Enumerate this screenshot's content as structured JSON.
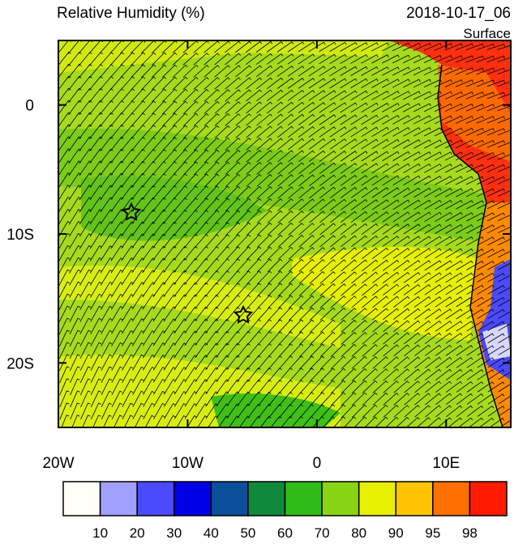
{
  "chart_data": {
    "type": "map",
    "title": "Relative Humidity (%)",
    "date": "2018-10-17_06",
    "level": "Surface",
    "xlim": [
      -20,
      15
    ],
    "ylim": [
      -25,
      5
    ],
    "xticks": [
      {
        "value": -20,
        "label": "20W"
      },
      {
        "value": -10,
        "label": "10W"
      },
      0,
      {
        "value": 10,
        "label": "10E"
      }
    ],
    "yticks": [
      0,
      {
        "value": -10,
        "label": "10S"
      },
      {
        "value": -20,
        "label": "20S"
      }
    ],
    "colorbar": {
      "levels": [
        10,
        20,
        30,
        40,
        50,
        60,
        70,
        80,
        90,
        95,
        98
      ],
      "colors": [
        "#fffff8",
        "#a0a0ff",
        "#4a4aff",
        "#0000e8",
        "#0a4f9a",
        "#0f8a3c",
        "#2fbb18",
        "#88d414",
        "#e6f000",
        "#ffc400",
        "#ff7000",
        "#ff1a00"
      ]
    }
  }
}
